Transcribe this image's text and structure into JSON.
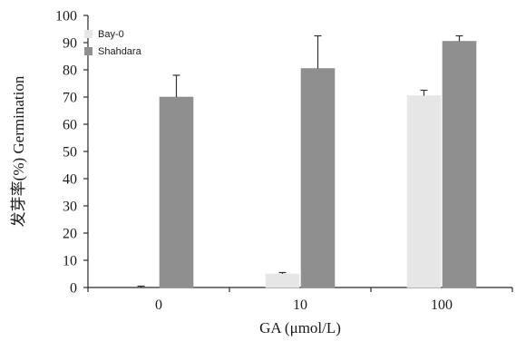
{
  "chart_data": {
    "type": "bar",
    "categories": [
      "0",
      "10",
      "100"
    ],
    "series": [
      {
        "name": "Bay-0",
        "color": "#e6e6e6",
        "values": [
          0,
          5,
          70.5
        ],
        "errors": [
          0.5,
          0.5,
          2
        ]
      },
      {
        "name": "Shahdara",
        "color": "#8f8f8f",
        "values": [
          70,
          80.5,
          90.5
        ],
        "errors": [
          8,
          12,
          2
        ]
      }
    ],
    "title": "",
    "xlabel": "GA (μmol/L)",
    "ylabel": "发芽率(%) Germination",
    "ylim": [
      0,
      100
    ],
    "yticks": [
      "0",
      "10",
      "20",
      "30",
      "40",
      "50",
      "60",
      "70",
      "80",
      "90",
      "100"
    ],
    "legend_position": "top-left",
    "grid": false
  }
}
